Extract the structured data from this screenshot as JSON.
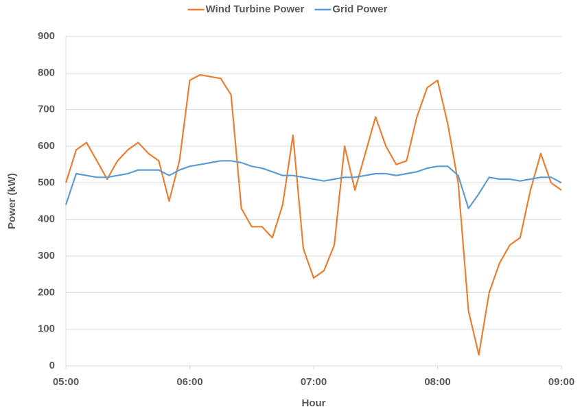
{
  "chart_data": {
    "type": "line",
    "xlabel": "Hour",
    "ylabel": "Power (kW)",
    "x": [
      300,
      305,
      310,
      315,
      320,
      325,
      330,
      335,
      340,
      345,
      350,
      355,
      360,
      365,
      370,
      375,
      380,
      385,
      390,
      395,
      400,
      405,
      410,
      415,
      420,
      425,
      430,
      435,
      440,
      445,
      450,
      455,
      460,
      465,
      470,
      475,
      480,
      485,
      490,
      495,
      500,
      505,
      510,
      515,
      520,
      525,
      530,
      535,
      540
    ],
    "series": [
      {
        "name": "Wind Turbine Power",
        "color": "#ed7d31",
        "values": [
          500,
          590,
          610,
          560,
          510,
          560,
          590,
          610,
          580,
          560,
          450,
          560,
          780,
          795,
          790,
          785,
          740,
          430,
          380,
          380,
          350,
          440,
          630,
          320,
          240,
          260,
          330,
          600,
          480,
          580,
          680,
          600,
          550,
          560,
          680,
          760,
          780,
          660,
          500,
          150,
          30,
          200,
          280,
          330,
          350,
          480,
          580,
          500,
          480
        ]
      },
      {
        "name": "Grid Power",
        "color": "#5b9bd5",
        "values": [
          440,
          525,
          520,
          515,
          515,
          520,
          525,
          535,
          535,
          535,
          520,
          535,
          545,
          550,
          555,
          560,
          560,
          555,
          545,
          540,
          530,
          520,
          520,
          515,
          510,
          505,
          510,
          515,
          515,
          520,
          525,
          525,
          520,
          525,
          530,
          540,
          545,
          545,
          520,
          430,
          470,
          515,
          510,
          510,
          505,
          510,
          515,
          515,
          500
        ]
      }
    ],
    "xlim": [
      300,
      540
    ],
    "xticks": [
      {
        "value": 300,
        "label": "05:00"
      },
      {
        "value": 360,
        "label": "06:00"
      },
      {
        "value": 420,
        "label": "07:00"
      },
      {
        "value": 480,
        "label": "08:00"
      },
      {
        "value": 540,
        "label": "09:00"
      }
    ],
    "ylim": [
      0,
      900
    ],
    "yticks": [
      0,
      100,
      200,
      300,
      400,
      500,
      600,
      700,
      800,
      900
    ],
    "grid": true,
    "legend": "top"
  }
}
